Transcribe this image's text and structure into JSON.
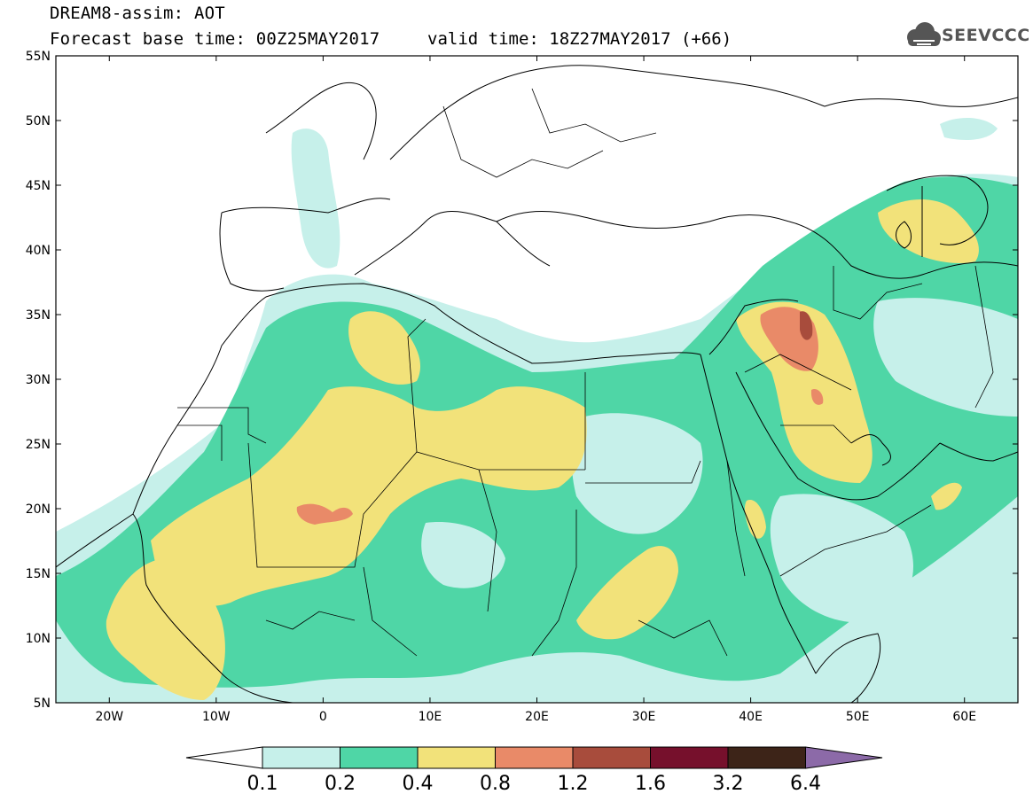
{
  "title": {
    "line1": "DREAM8-assim: AOT",
    "base": "Forecast base time: 00Z25MAY2017",
    "valid": "valid time: 18Z27MAY2017 (+66)"
  },
  "logo": {
    "text": "SEEVCCC",
    "icon": "cloud-logo-icon"
  },
  "map": {
    "lat_labels": [
      "55N",
      "50N",
      "45N",
      "40N",
      "35N",
      "30N",
      "25N",
      "20N",
      "15N",
      "10N",
      "5N"
    ],
    "lon_labels": [
      "20W",
      "10W",
      "0",
      "10E",
      "20E",
      "30E",
      "40E",
      "50E",
      "60E"
    ],
    "lon_range": [
      -25,
      65
    ],
    "lat_range": [
      5,
      55
    ],
    "grid": false,
    "colors": {
      "c01": "#c6f0ea",
      "c02": "#4fd6a6",
      "c04": "#f2e27a",
      "c08": "#e98a68",
      "c12": "#a84c3c",
      "c16": "#76102c",
      "c32": "#3d2418",
      "c64": "#8c6aa8"
    }
  },
  "colorbar": {
    "labels": [
      "0.1",
      "0.2",
      "0.4",
      "0.8",
      "1.2",
      "1.6",
      "3.2",
      "6.4"
    ],
    "colors": [
      "#c6f0ea",
      "#4fd6a6",
      "#f2e27a",
      "#e98a68",
      "#a84c3c",
      "#76102c",
      "#3d2418"
    ],
    "under_color": "#ffffff",
    "over_color": "#8c6aa8"
  }
}
